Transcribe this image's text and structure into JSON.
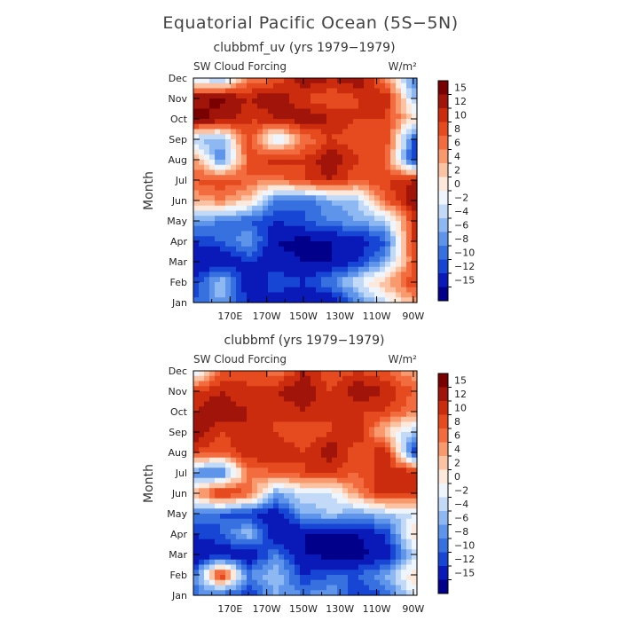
{
  "figure": {
    "title": "Equatorial Pacific Ocean (5S−5N)"
  },
  "colors": {
    "levels": [
      "#00008b",
      "#0a1ab8",
      "#1846d4",
      "#3771e0",
      "#5e95ea",
      "#8eb8f2",
      "#c2daf8",
      "#eef5fc",
      "#fde9dc",
      "#fbc3a3",
      "#f8996e",
      "#f26c3f",
      "#e64a1f",
      "#cc2c0e",
      "#a0140a",
      "#7a0000"
    ]
  },
  "chart_data": [
    {
      "type": "heatmap",
      "subtitle": "clubbmf_uv (yrs 1979−1979)",
      "left_label": "SW Cloud Forcing",
      "right_label": "W/m²",
      "ylabel": "Month",
      "x_ticks": [
        "170E",
        "170W",
        "150W",
        "130W",
        "110W",
        "90W"
      ],
      "y_ticks": [
        "Jan",
        "Feb",
        "Mar",
        "Apr",
        "May",
        "Jun",
        "Jul",
        "Aug",
        "Sep",
        "Oct",
        "Nov",
        "Dec"
      ],
      "colorbar_ticks": [
        "15",
        "12",
        "10",
        "8",
        "6",
        "4",
        "2",
        "0",
        "−2",
        "−4",
        "−6",
        "−8",
        "−10",
        "−12",
        "−15"
      ],
      "colorbar_levels": [
        -15,
        -12,
        -10,
        -8,
        -6,
        -4,
        -2,
        0,
        2,
        4,
        6,
        8,
        10,
        12,
        15
      ],
      "x_lon": [
        150,
        165,
        180,
        195,
        210,
        225,
        240,
        255,
        270
      ],
      "y_month": [
        "Jan",
        "Feb",
        "Mar",
        "Apr",
        "May",
        "Jun",
        "Jul",
        "Aug",
        "Sep",
        "Oct",
        "Nov",
        "Dec"
      ],
      "z": [
        [
          -10,
          -6,
          -12,
          -14,
          -15,
          -15,
          -8,
          -2,
          4
        ],
        [
          -12,
          -4,
          -15,
          -10,
          -12,
          -8,
          -2,
          4,
          10
        ],
        [
          -15,
          -15,
          -12,
          -14,
          -15,
          -15,
          -12,
          -6,
          8
        ],
        [
          -12,
          -10,
          -6,
          -15,
          -16,
          -15,
          -14,
          -10,
          10
        ],
        [
          -6,
          -8,
          -10,
          -12,
          -10,
          -8,
          -6,
          -4,
          10
        ],
        [
          4,
          6,
          2,
          -8,
          -10,
          -6,
          -4,
          8,
          14
        ],
        [
          8,
          10,
          8,
          6,
          10,
          12,
          8,
          10,
          12
        ],
        [
          6,
          -8,
          8,
          12,
          10,
          14,
          10,
          8,
          -12
        ],
        [
          -4,
          -6,
          10,
          -4,
          6,
          10,
          8,
          10,
          -10
        ],
        [
          16,
          14,
          10,
          12,
          14,
          12,
          10,
          10,
          2
        ],
        [
          14,
          16,
          12,
          14,
          10,
          8,
          10,
          12,
          -4
        ],
        [
          -2,
          -6,
          6,
          8,
          14,
          12,
          14,
          6,
          -8
        ]
      ]
    },
    {
      "type": "heatmap",
      "subtitle": "clubbmf (yrs 1979−1979)",
      "left_label": "SW Cloud Forcing",
      "right_label": "W/m²",
      "ylabel": "Month",
      "x_ticks": [
        "170E",
        "170W",
        "150W",
        "130W",
        "110W",
        "90W"
      ],
      "y_ticks": [
        "Jan",
        "Feb",
        "Mar",
        "Apr",
        "May",
        "Jun",
        "Jul",
        "Aug",
        "Sep",
        "Oct",
        "Nov",
        "Dec"
      ],
      "colorbar_ticks": [
        "15",
        "12",
        "10",
        "8",
        "6",
        "4",
        "2",
        "0",
        "−2",
        "−4",
        "−6",
        "−8",
        "−10",
        "−12",
        "−15"
      ],
      "colorbar_levels": [
        -15,
        -12,
        -10,
        -8,
        -6,
        -4,
        -2,
        0,
        2,
        4,
        6,
        8,
        10,
        12,
        15
      ],
      "x_lon": [
        150,
        165,
        180,
        195,
        210,
        225,
        240,
        255,
        270
      ],
      "y_month": [
        "Jan",
        "Feb",
        "Mar",
        "Apr",
        "May",
        "Jun",
        "Jul",
        "Aug",
        "Sep",
        "Oct",
        "Nov",
        "Dec"
      ],
      "z": [
        [
          -8,
          -10,
          -12,
          -6,
          -8,
          -6,
          -12,
          -10,
          -2
        ],
        [
          -10,
          12,
          -8,
          -4,
          -12,
          -10,
          -10,
          -6,
          2
        ],
        [
          -15,
          -14,
          -15,
          -8,
          -15,
          -16,
          -16,
          -14,
          -4
        ],
        [
          -12,
          -10,
          -4,
          -15,
          -15,
          -16,
          -15,
          -12,
          2
        ],
        [
          -8,
          -10,
          -12,
          -14,
          -6,
          -4,
          -6,
          -4,
          -2
        ],
        [
          4,
          12,
          8,
          -6,
          -2,
          -2,
          6,
          12,
          10
        ],
        [
          -8,
          -10,
          6,
          8,
          10,
          10,
          8,
          12,
          12
        ],
        [
          10,
          8,
          12,
          12,
          10,
          14,
          8,
          12,
          -12
        ],
        [
          14,
          10,
          12,
          10,
          8,
          10,
          12,
          2,
          -4
        ],
        [
          12,
          14,
          12,
          10,
          12,
          10,
          10,
          10,
          6
        ],
        [
          10,
          12,
          10,
          12,
          14,
          10,
          14,
          12,
          8
        ],
        [
          -4,
          8,
          10,
          6,
          12,
          8,
          10,
          8,
          4
        ]
      ]
    }
  ]
}
